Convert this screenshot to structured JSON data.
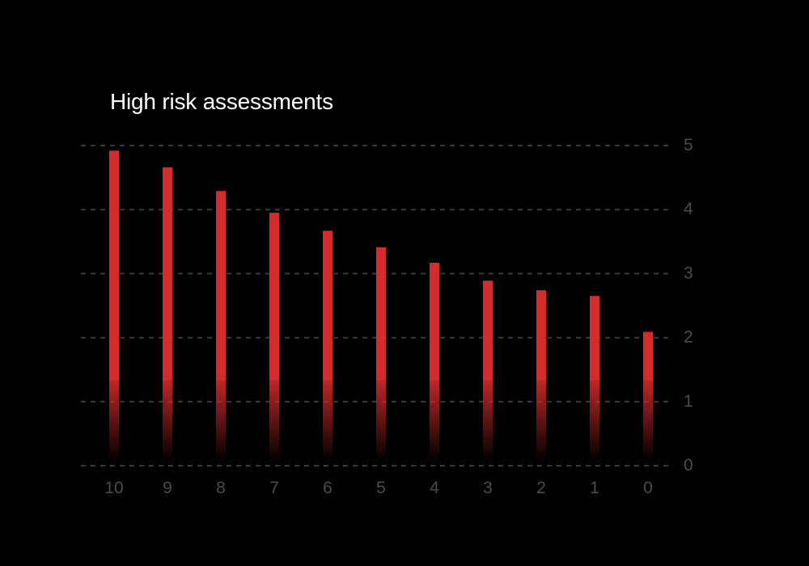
{
  "chart_data": {
    "type": "bar",
    "title": "High risk assessments",
    "xlabel": "",
    "ylabel": "",
    "categories": [
      "10",
      "9",
      "8",
      "7",
      "6",
      "5",
      "4",
      "3",
      "2",
      "1",
      "0"
    ],
    "values": [
      4.92,
      4.66,
      4.29,
      3.95,
      3.67,
      3.41,
      3.17,
      2.89,
      2.74,
      2.65,
      2.09
    ],
    "ylim": [
      0,
      5
    ],
    "yticks": [
      "0",
      "1",
      "2",
      "3",
      "4",
      "5"
    ],
    "y_axis_side": "right",
    "grid": true,
    "bar_color": "#d42b2b",
    "grid_color": "#3a3a3a",
    "tick_color": "#4a4a4a",
    "title_color": "#ffffff",
    "background": "#000000"
  }
}
